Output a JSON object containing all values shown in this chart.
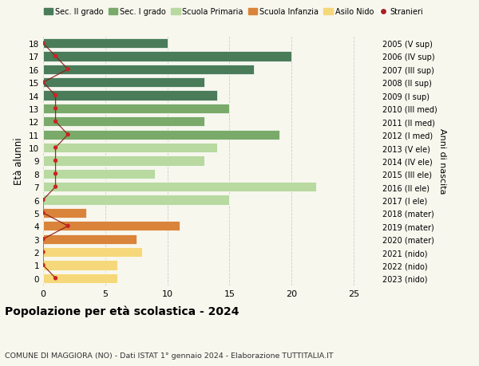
{
  "ages": [
    18,
    17,
    16,
    15,
    14,
    13,
    12,
    11,
    10,
    9,
    8,
    7,
    6,
    5,
    4,
    3,
    2,
    1,
    0
  ],
  "right_labels": [
    "2005 (V sup)",
    "2006 (IV sup)",
    "2007 (III sup)",
    "2008 (II sup)",
    "2009 (I sup)",
    "2010 (III med)",
    "2011 (II med)",
    "2012 (I med)",
    "2013 (V ele)",
    "2014 (IV ele)",
    "2015 (III ele)",
    "2016 (II ele)",
    "2017 (I ele)",
    "2018 (mater)",
    "2019 (mater)",
    "2020 (mater)",
    "2021 (nido)",
    "2022 (nido)",
    "2023 (nido)"
  ],
  "bar_values": [
    10,
    20,
    17,
    13,
    14,
    15,
    13,
    19,
    14,
    13,
    9,
    22,
    15,
    3.5,
    11,
    7.5,
    8,
    6,
    6
  ],
  "bar_colors": [
    "#4a7c59",
    "#4a7c59",
    "#4a7c59",
    "#4a7c59",
    "#4a7c59",
    "#7aaa6a",
    "#7aaa6a",
    "#7aaa6a",
    "#b8d9a0",
    "#b8d9a0",
    "#b8d9a0",
    "#b8d9a0",
    "#b8d9a0",
    "#d9843a",
    "#d9843a",
    "#d9843a",
    "#f5d87a",
    "#f5d87a",
    "#f5d87a"
  ],
  "stranieri_values": [
    0,
    1,
    2,
    0,
    1,
    1,
    1,
    2,
    1,
    1,
    1,
    1,
    0,
    0,
    2,
    0,
    0,
    0,
    1
  ],
  "legend_labels": [
    "Sec. II grado",
    "Sec. I grado",
    "Scuola Primaria",
    "Scuola Infanzia",
    "Asilo Nido",
    "Stranieri"
  ],
  "legend_colors": [
    "#4a7c59",
    "#7aaa6a",
    "#b8d9a0",
    "#d9843a",
    "#f5d87a",
    "#aa2222"
  ],
  "title": "Popolazione per età scolastica - 2024",
  "subtitle": "COMUNE DI MAGGIORA (NO) - Dati ISTAT 1° gennaio 2024 - Elaborazione TUTTITALIA.IT",
  "ylabel": "Età alunni",
  "right_ylabel": "Anni di nascita",
  "xlim": [
    0,
    27
  ],
  "background_color": "#f7f7ee",
  "grid_color": "#cccccc"
}
